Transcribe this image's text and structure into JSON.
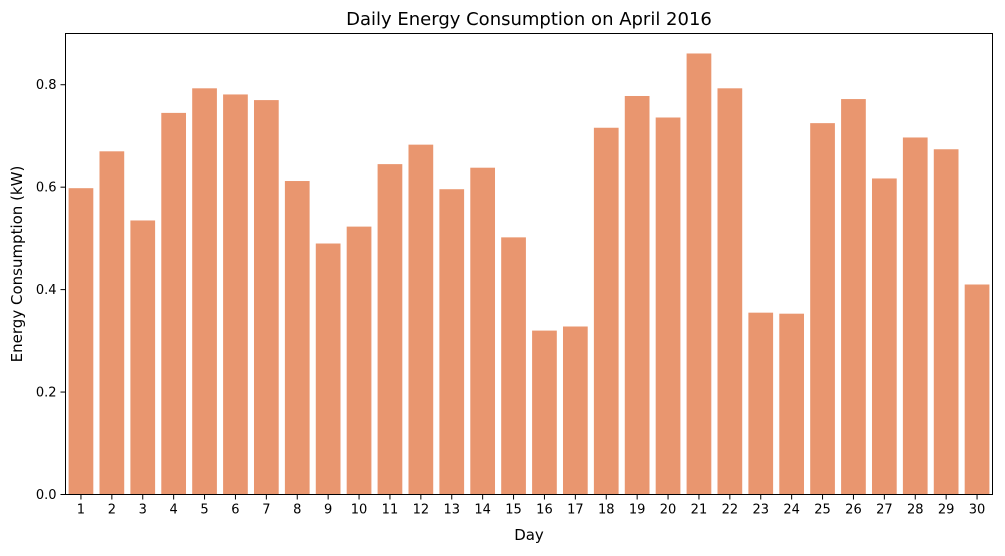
{
  "chart_data": {
    "type": "bar",
    "title": "Daily Energy Consumption on April 2016",
    "xlabel": "Day",
    "ylabel": "Energy Consumption (kW)",
    "ylim": [
      0,
      0.9
    ],
    "yticks": [
      "0.0",
      "0.2",
      "0.4",
      "0.6",
      "0.8"
    ],
    "ytick_values": [
      0,
      0.2,
      0.4,
      0.6,
      0.8
    ],
    "categories": [
      "1",
      "2",
      "3",
      "4",
      "5",
      "6",
      "7",
      "8",
      "9",
      "10",
      "11",
      "12",
      "13",
      "14",
      "15",
      "16",
      "17",
      "18",
      "19",
      "20",
      "21",
      "22",
      "23",
      "24",
      "25",
      "26",
      "27",
      "28",
      "29",
      "30"
    ],
    "values": [
      0.598,
      0.67,
      0.535,
      0.745,
      0.793,
      0.781,
      0.77,
      0.612,
      0.49,
      0.523,
      0.645,
      0.683,
      0.596,
      0.638,
      0.502,
      0.32,
      0.328,
      0.716,
      0.778,
      0.736,
      0.861,
      0.793,
      0.355,
      0.353,
      0.725,
      0.772,
      0.617,
      0.697,
      0.674,
      0.41
    ],
    "bar_color": "#E9966F",
    "grid": false
  }
}
